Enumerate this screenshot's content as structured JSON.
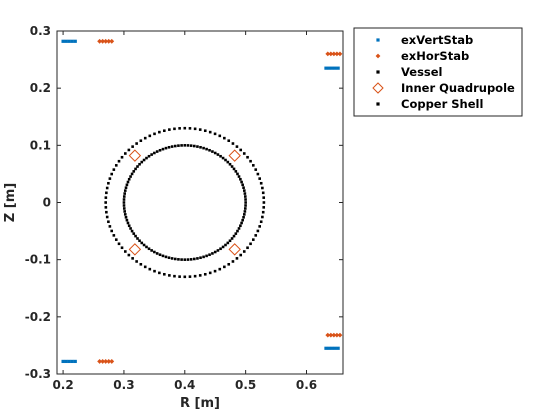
{
  "chart_data": {
    "type": "scatter",
    "title": "",
    "xlabel": "R [m]",
    "ylabel": "Z [m]",
    "xlim": [
      0.19,
      0.66
    ],
    "ylim": [
      -0.3,
      0.3
    ],
    "xticks": [
      0.2,
      0.3,
      0.4,
      0.5,
      0.6
    ],
    "yticks": [
      -0.3,
      -0.2,
      -0.1,
      0,
      0.1,
      0.2,
      0.3
    ],
    "xtick_labels": [
      "0.2",
      "0.3",
      "0.4",
      "0.5",
      "0.6"
    ],
    "ytick_labels": [
      "-0.3",
      "-0.2",
      "-0.1",
      "0",
      "0.1",
      "0.2",
      "0.3"
    ],
    "grid": false,
    "legend_position": "outside-top-right",
    "legend_labels": [
      "exVertStab",
      "exHorStab",
      "Vessel",
      "Inner Quadrupole",
      "Copper Shell"
    ],
    "series": [
      {
        "name": "exVertStab",
        "marker": "square",
        "color": "#0072BD",
        "points": [
          [
            0.2,
            0.282
          ],
          [
            0.205,
            0.282
          ],
          [
            0.21,
            0.282
          ],
          [
            0.215,
            0.282
          ],
          [
            0.22,
            0.282
          ],
          [
            0.2,
            -0.278
          ],
          [
            0.205,
            -0.278
          ],
          [
            0.21,
            -0.278
          ],
          [
            0.215,
            -0.278
          ],
          [
            0.22,
            -0.278
          ],
          [
            0.632,
            0.235
          ],
          [
            0.637,
            0.235
          ],
          [
            0.642,
            0.235
          ],
          [
            0.647,
            0.235
          ],
          [
            0.652,
            0.235
          ],
          [
            0.632,
            -0.255
          ],
          [
            0.637,
            -0.255
          ],
          [
            0.642,
            -0.255
          ],
          [
            0.647,
            -0.255
          ],
          [
            0.652,
            -0.255
          ]
        ]
      },
      {
        "name": "exHorStab",
        "marker": "diamond",
        "color": "#D95319",
        "points": [
          [
            0.26,
            0.282
          ],
          [
            0.265,
            0.282
          ],
          [
            0.27,
            0.282
          ],
          [
            0.275,
            0.282
          ],
          [
            0.28,
            0.282
          ],
          [
            0.26,
            -0.278
          ],
          [
            0.265,
            -0.278
          ],
          [
            0.27,
            -0.278
          ],
          [
            0.275,
            -0.278
          ],
          [
            0.28,
            -0.278
          ],
          [
            0.635,
            0.26
          ],
          [
            0.64,
            0.26
          ],
          [
            0.645,
            0.26
          ],
          [
            0.65,
            0.26
          ],
          [
            0.655,
            0.26
          ],
          [
            0.635,
            -0.232
          ],
          [
            0.64,
            -0.232
          ],
          [
            0.645,
            -0.232
          ],
          [
            0.65,
            -0.232
          ],
          [
            0.655,
            -0.232
          ]
        ]
      },
      {
        "name": "Vessel",
        "marker": "square",
        "color": "#000000",
        "shape": "circle",
        "center": [
          0.4,
          0.0
        ],
        "radius": 0.13,
        "count": 96
      },
      {
        "name": "Inner Quadrupole",
        "marker": "diamond-open",
        "color": "#D95319",
        "points": [
          [
            0.318,
            0.082
          ],
          [
            0.482,
            0.082
          ],
          [
            0.318,
            -0.082
          ],
          [
            0.482,
            -0.082
          ]
        ]
      },
      {
        "name": "Copper Shell",
        "marker": "square",
        "color": "#000000",
        "shape": "circle",
        "center": [
          0.4,
          0.0
        ],
        "radius": 0.1,
        "count": 120
      }
    ]
  }
}
